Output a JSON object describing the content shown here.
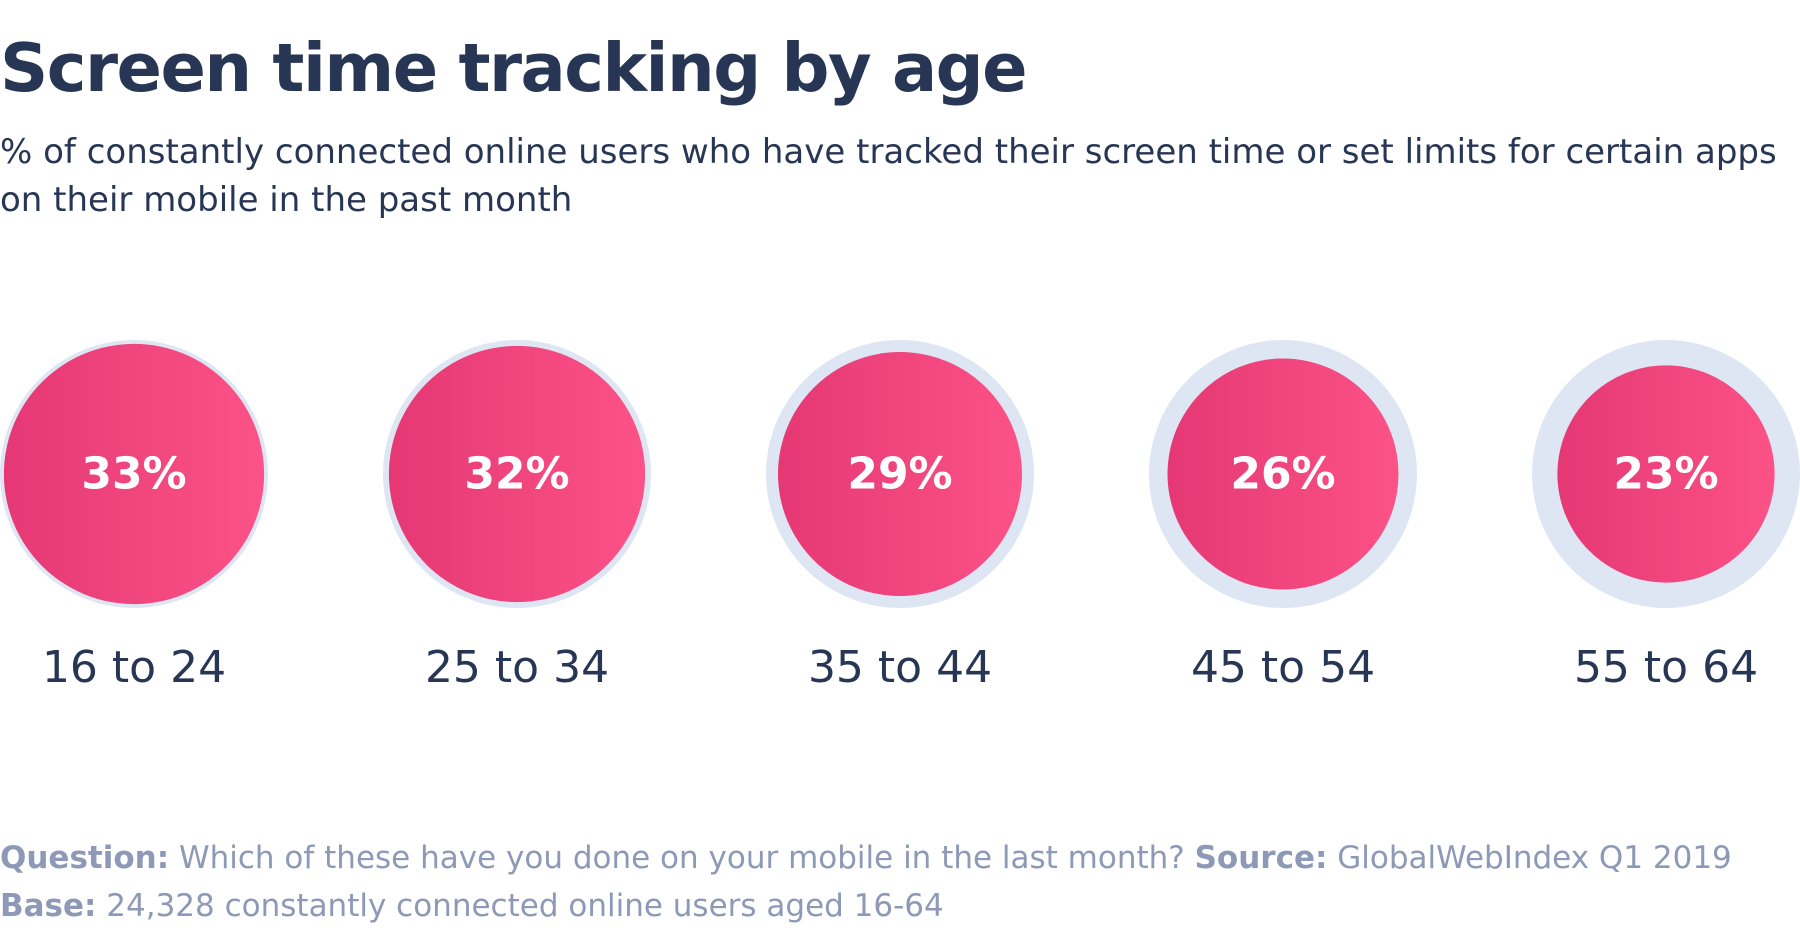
{
  "title": "Screen time tracking by age",
  "subtitle": "% of constantly connected online users who have tracked their screen time or set limits for certain apps on their mobile in the past month",
  "colors": {
    "title_text": "#283655",
    "outer_ring": "#dfe6f3",
    "bubble_gradient_start": "#e53874",
    "bubble_gradient_end": "#fb5287",
    "value_label": "#ffffff",
    "footnote_text": "#8d99b7"
  },
  "chart_data": {
    "type": "bubble",
    "unit": "%",
    "categories": [
      "16 to 24",
      "25 to 34",
      "35 to 44",
      "45 to 54",
      "55 to 64"
    ],
    "values": [
      33,
      32,
      29,
      26,
      23
    ],
    "value_labels": [
      "33%",
      "32%",
      "29%",
      "26%",
      "23%"
    ],
    "outer_circle_value": 35,
    "legend": "none",
    "grid": false
  },
  "footnote": {
    "question_label": "Question:",
    "question_text": " Which of these have you done on your mobile in the last month? ",
    "source_label": "Source:",
    "source_text": " GlobalWebIndex Q1 2019 ",
    "base_label": "Base:",
    "base_text": " 24,328 constantly connected online users aged 16-64"
  }
}
